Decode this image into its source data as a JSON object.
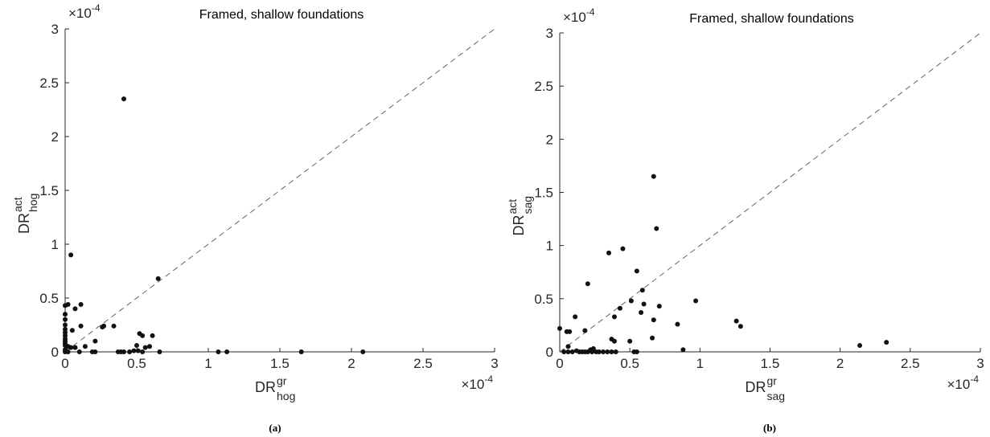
{
  "chart_data": [
    {
      "type": "scatter",
      "title": "Framed, shallow foundations",
      "caption": "(a)",
      "xlabel": {
        "base": "DR",
        "sup": "gr",
        "sub": "hog"
      },
      "ylabel": {
        "base": "DR",
        "sup": "act",
        "sub": "hog"
      },
      "exponent_label": {
        "base": "×10",
        "exp": "-4"
      },
      "xlim": [
        0,
        3
      ],
      "ylim": [
        0,
        3
      ],
      "xticks": [
        "0",
        "0.5",
        "1",
        "1.5",
        "2",
        "2.5",
        "3"
      ],
      "yticks": [
        "0",
        "0.5",
        "1",
        "1.5",
        "2",
        "2.5",
        "3"
      ],
      "reference_line": "y = x (dashed)",
      "points": [
        [
          0.41,
          2.35
        ],
        [
          0.04,
          0.9
        ],
        [
          0.65,
          0.68
        ],
        [
          0.0,
          0.43
        ],
        [
          0.02,
          0.44
        ],
        [
          0.11,
          0.44
        ],
        [
          0.07,
          0.4
        ],
        [
          0.0,
          0.35
        ],
        [
          0.0,
          0.3
        ],
        [
          0.0,
          0.25
        ],
        [
          0.11,
          0.24
        ],
        [
          0.34,
          0.24
        ],
        [
          0.26,
          0.23
        ],
        [
          0.27,
          0.24
        ],
        [
          0.0,
          0.21
        ],
        [
          0.05,
          0.2
        ],
        [
          0.0,
          0.18
        ],
        [
          0.0,
          0.15
        ],
        [
          0.52,
          0.17
        ],
        [
          0.54,
          0.15
        ],
        [
          0.61,
          0.15
        ],
        [
          0.0,
          0.12
        ],
        [
          0.0,
          0.1
        ],
        [
          0.0,
          0.08
        ],
        [
          0.21,
          0.1
        ],
        [
          0.0,
          0.06
        ],
        [
          0.02,
          0.05
        ],
        [
          0.04,
          0.04
        ],
        [
          0.07,
          0.04
        ],
        [
          0.14,
          0.05
        ],
        [
          0.5,
          0.06
        ],
        [
          0.59,
          0.05
        ],
        [
          0.56,
          0.04
        ],
        [
          0.0,
          0.02
        ],
        [
          0.0,
          0.0
        ],
        [
          0.02,
          0.0
        ],
        [
          0.1,
          0.0
        ],
        [
          0.19,
          0.0
        ],
        [
          0.21,
          0.0
        ],
        [
          0.37,
          0.0
        ],
        [
          0.39,
          0.0
        ],
        [
          0.41,
          0.0
        ],
        [
          0.45,
          0.0
        ],
        [
          0.48,
          0.01
        ],
        [
          0.51,
          0.01
        ],
        [
          0.54,
          0.0
        ],
        [
          0.66,
          0.0
        ],
        [
          1.07,
          0.0
        ],
        [
          1.13,
          0.0
        ],
        [
          1.65,
          0.0
        ],
        [
          2.08,
          0.0
        ]
      ]
    },
    {
      "type": "scatter",
      "title": "Framed, shallow foundations",
      "caption": "(b)",
      "xlabel": {
        "base": "DR",
        "sup": "gr",
        "sub": "sag"
      },
      "ylabel": {
        "base": "DR",
        "sup": "act",
        "sub": "sag"
      },
      "exponent_label": {
        "base": "×10",
        "exp": "-4"
      },
      "xlim": [
        0,
        3
      ],
      "ylim": [
        0,
        3
      ],
      "xticks": [
        "0",
        "0.5",
        "1",
        "1.5",
        "2",
        "2.5",
        "3"
      ],
      "yticks": [
        "0",
        "0.5",
        "1",
        "1.5",
        "2",
        "2.5",
        "3"
      ],
      "reference_line": "y = x (dashed)",
      "points": [
        [
          0.67,
          1.65
        ],
        [
          0.69,
          1.16
        ],
        [
          0.45,
          0.97
        ],
        [
          0.35,
          0.93
        ],
        [
          0.55,
          0.76
        ],
        [
          0.2,
          0.64
        ],
        [
          0.59,
          0.58
        ],
        [
          0.51,
          0.48
        ],
        [
          0.97,
          0.48
        ],
        [
          0.6,
          0.45
        ],
        [
          0.71,
          0.43
        ],
        [
          0.43,
          0.41
        ],
        [
          0.58,
          0.37
        ],
        [
          0.11,
          0.33
        ],
        [
          0.39,
          0.33
        ],
        [
          0.67,
          0.3
        ],
        [
          1.26,
          0.29
        ],
        [
          0.84,
          0.26
        ],
        [
          1.29,
          0.24
        ],
        [
          0.0,
          0.22
        ],
        [
          0.05,
          0.19
        ],
        [
          0.07,
          0.19
        ],
        [
          0.18,
          0.2
        ],
        [
          0.66,
          0.13
        ],
        [
          0.37,
          0.12
        ],
        [
          0.39,
          0.1
        ],
        [
          0.5,
          0.1
        ],
        [
          2.33,
          0.09
        ],
        [
          2.14,
          0.06
        ],
        [
          0.06,
          0.05
        ],
        [
          0.88,
          0.02
        ],
        [
          0.22,
          0.02
        ],
        [
          0.24,
          0.03
        ],
        [
          0.03,
          0.0
        ],
        [
          0.06,
          0.0
        ],
        [
          0.09,
          0.0
        ],
        [
          0.12,
          0.01
        ],
        [
          0.14,
          0.0
        ],
        [
          0.16,
          0.0
        ],
        [
          0.18,
          0.0
        ],
        [
          0.2,
          0.0
        ],
        [
          0.23,
          0.0
        ],
        [
          0.26,
          0.0
        ],
        [
          0.28,
          0.0
        ],
        [
          0.31,
          0.0
        ],
        [
          0.34,
          0.0
        ],
        [
          0.37,
          0.0
        ],
        [
          0.4,
          0.0
        ],
        [
          0.53,
          0.0
        ],
        [
          0.55,
          0.0
        ]
      ]
    }
  ]
}
